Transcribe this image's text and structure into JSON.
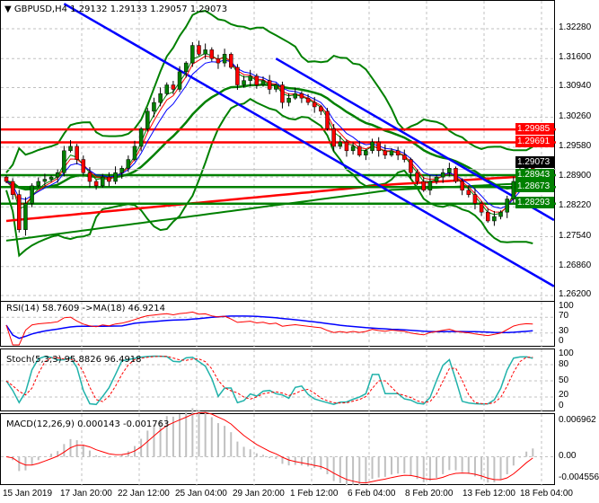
{
  "header": {
    "symbol_label": "GBPUSD,H4",
    "ohlc": "1.29132 1.29133 1.29057 1.29073"
  },
  "price_axis": [
    "1.32280",
    "1.31600",
    "1.30940",
    "1.30260",
    "1.29580",
    "1.28900",
    "1.28220",
    "1.27540",
    "1.26860",
    "1.26200"
  ],
  "price_ticks": [
    1.3228,
    1.316,
    1.3094,
    1.3026,
    1.2958,
    1.289,
    1.2822,
    1.2754,
    1.2686,
    1.262
  ],
  "levels": [
    {
      "price": 1.29985,
      "label": "1.29985",
      "color": "#ff0000"
    },
    {
      "price": 1.29691,
      "label": "1.29691",
      "color": "#ff0000"
    },
    {
      "price": 1.28943,
      "label": "1.28943",
      "color": "#008000"
    },
    {
      "price": 1.28673,
      "label": "1.28673",
      "color": "#008000"
    },
    {
      "price": 1.28293,
      "label": "1.28293",
      "color": "#008000"
    }
  ],
  "current_price": {
    "price": 1.29073,
    "label": "1.29073"
  },
  "chart_data": {
    "type": "candlestick",
    "closes": [
      1.288,
      1.285,
      1.277,
      1.283,
      1.287,
      1.288,
      1.2885,
      1.289,
      1.29,
      1.295,
      1.296,
      1.293,
      1.29,
      1.288,
      1.287,
      1.289,
      1.288,
      1.29,
      1.291,
      1.293,
      1.296,
      1.3,
      1.304,
      1.306,
      1.308,
      1.31,
      1.309,
      1.313,
      1.315,
      1.319,
      1.317,
      1.318,
      1.316,
      1.315,
      1.317,
      1.314,
      1.31,
      1.311,
      1.312,
      1.31,
      1.311,
      1.309,
      1.31,
      1.306,
      1.307,
      1.308,
      1.307,
      1.306,
      1.305,
      1.304,
      1.3,
      1.296,
      1.297,
      1.295,
      1.296,
      1.294,
      1.295,
      1.297,
      1.295,
      1.294,
      1.295,
      1.294,
      1.293,
      1.29,
      1.288,
      1.286,
      1.288,
      1.289,
      1.29,
      1.291,
      1.288,
      1.286,
      1.285,
      1.283,
      1.281,
      1.279,
      1.28,
      1.281,
      1.284,
      1.288,
      1.29,
      1.291,
      1.2907
    ],
    "trendlines": [
      {
        "from": [
          9,
          1.3285
        ],
        "to": [
          85.3,
          1.2641
        ],
        "color": "#0000ff"
      },
      {
        "from": [
          42,
          1.316
        ],
        "to": [
          85.3,
          1.2792
        ],
        "color": "#0000ff"
      }
    ],
    "price_range": [
      1.26,
      1.329
    ],
    "grid": true,
    "time_labels": [
      "15 Jan 2019",
      "17 Jan 20:00",
      "22 Jan 12:00",
      "25 Jan 04:00",
      "29 Jan 20:00",
      "1 Feb 12:00",
      "6 Feb 04:00",
      "8 Feb 20:00",
      "13 Feb 12:00",
      "18 Feb 04:00"
    ]
  },
  "rsi": {
    "label": "RSI(14) 58.7609  ->MA(18) 46.9214",
    "axis": [
      "100",
      "70",
      "30",
      "0"
    ]
  },
  "stoch": {
    "label": "Stoch(5,3,3) 95.8826 96.4918",
    "axis": [
      "100",
      "80",
      "50",
      "20",
      "0"
    ]
  },
  "macd": {
    "label": "MACD(12,26,9) 0.000143 -0.001763",
    "axis": [
      "0.006962",
      "0.00",
      "-0.004556"
    ],
    "range": [
      -0.004556,
      0.006962
    ]
  },
  "colors": {
    "bull": "#008000",
    "bear": "#ff0000",
    "bands": "#008000",
    "trend": "#0000ff"
  }
}
